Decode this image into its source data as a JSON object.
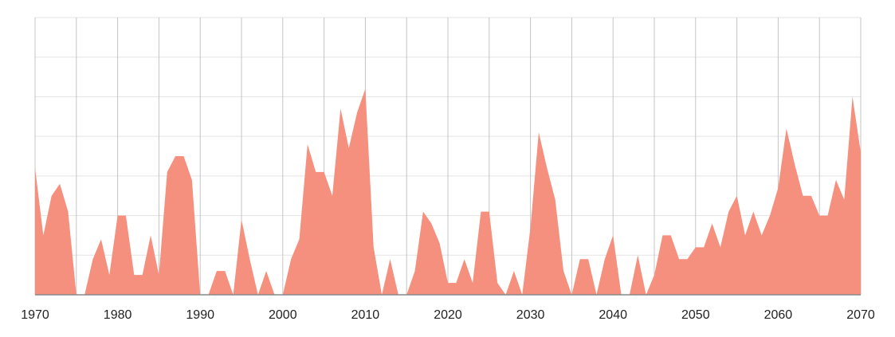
{
  "chart_data": {
    "type": "area",
    "x": [
      1970,
      1971,
      1972,
      1973,
      1974,
      1975,
      1976,
      1977,
      1978,
      1979,
      1980,
      1981,
      1982,
      1983,
      1984,
      1985,
      1986,
      1987,
      1988,
      1989,
      1990,
      1991,
      1992,
      1993,
      1994,
      1995,
      1996,
      1997,
      1998,
      1999,
      2000,
      2001,
      2002,
      2003,
      2004,
      2005,
      2006,
      2007,
      2008,
      2009,
      2010,
      2011,
      2012,
      2013,
      2014,
      2015,
      2016,
      2017,
      2018,
      2019,
      2020,
      2021,
      2022,
      2023,
      2024,
      2025,
      2026,
      2027,
      2028,
      2029,
      2030,
      2031,
      2032,
      2033,
      2034,
      2035,
      2036,
      2037,
      2038,
      2039,
      2040,
      2041,
      2042,
      2043,
      2044,
      2045,
      2046,
      2047,
      2048,
      2049,
      2050,
      2051,
      2052,
      2053,
      2054,
      2055,
      2056,
      2057,
      2058,
      2059,
      2060,
      2061,
      2062,
      2063,
      2064,
      2065,
      2066,
      2067,
      2068,
      2069,
      2070
    ],
    "values": [
      3.2,
      1.5,
      2.5,
      2.8,
      2.1,
      0,
      0,
      0.9,
      1.4,
      0.5,
      2.0,
      2.0,
      0.5,
      0.5,
      1.5,
      0.5,
      3.1,
      3.5,
      3.5,
      2.9,
      0,
      0,
      0.6,
      0.6,
      0,
      1.9,
      0.9,
      0,
      0.6,
      0,
      0,
      0.9,
      1.4,
      3.8,
      3.1,
      3.1,
      2.5,
      4.7,
      3.7,
      4.6,
      5.2,
      1.2,
      0,
      0.9,
      0,
      0,
      0.6,
      2.1,
      1.8,
      1.3,
      0.3,
      0.3,
      0.9,
      0.3,
      2.1,
      2.1,
      0.3,
      0,
      0.6,
      0,
      1.7,
      4.1,
      3.2,
      2.4,
      0.6,
      0,
      0.9,
      0.9,
      0,
      0.9,
      1.5,
      0,
      0,
      1.0,
      0,
      0.5,
      1.5,
      1.5,
      0.9,
      0.9,
      1.2,
      1.2,
      1.8,
      1.2,
      2.1,
      2.5,
      1.5,
      2.1,
      1.5,
      2.0,
      2.7,
      4.2,
      3.3,
      2.5,
      2.5,
      2.0,
      2.0,
      2.9,
      2.4,
      5.0,
      3.6
    ],
    "color": "#f58f7e",
    "xlim": [
      1970,
      2070
    ],
    "xticks": [
      1970,
      1980,
      1990,
      2000,
      2010,
      2020,
      2030,
      2040,
      2050,
      2060,
      2070
    ],
    "x_minor_ticks": [
      1975,
      1985,
      1995,
      2005,
      2015,
      2025,
      2035,
      2045,
      2055,
      2065
    ],
    "ylim": [
      0,
      7
    ],
    "yticks": [
      0,
      1,
      2,
      3,
      4,
      5,
      6,
      7
    ],
    "grid": true
  }
}
